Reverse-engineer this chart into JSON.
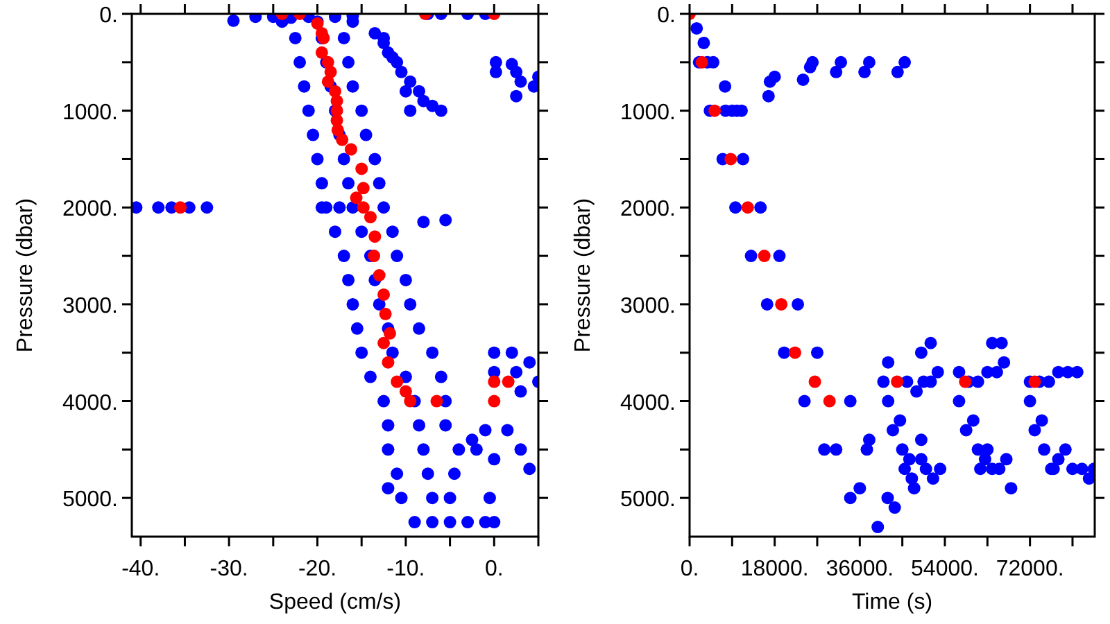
{
  "chart_data": [
    {
      "type": "scatter",
      "xlabel": "Speed (cm/s)",
      "ylabel": "Pressure (dbar)",
      "marker": "circle",
      "xlim": [
        -41,
        5
      ],
      "ylim": [
        5400,
        0
      ],
      "xticks": [
        {
          "value": -40,
          "label": "-40."
        },
        {
          "value": -35,
          "label": null
        },
        {
          "value": -30,
          "label": "-30."
        },
        {
          "value": -25,
          "label": null
        },
        {
          "value": -20,
          "label": "-20."
        },
        {
          "value": -15,
          "label": null
        },
        {
          "value": -10,
          "label": "-10."
        },
        {
          "value": -5,
          "label": null
        },
        {
          "value": 0,
          "label": "0."
        },
        {
          "value": 5,
          "label": null
        }
      ],
      "yticks": [
        {
          "value": 0,
          "label": "0."
        },
        {
          "value": 500,
          "label": null
        },
        {
          "value": 1000,
          "label": "1000."
        },
        {
          "value": 1500,
          "label": null
        },
        {
          "value": 2000,
          "label": "2000."
        },
        {
          "value": 2500,
          "label": null
        },
        {
          "value": 3000,
          "label": "3000."
        },
        {
          "value": 3500,
          "label": null
        },
        {
          "value": 4000,
          "label": "4000."
        },
        {
          "value": 4500,
          "label": null
        },
        {
          "value": 5000,
          "label": "5000."
        }
      ],
      "series": [
        {
          "color": "#0000ff",
          "x": [
            -24,
            -20,
            -16,
            -22.5,
            -19.5,
            -17,
            -22,
            -19,
            -16.5,
            -21.5,
            -18.5,
            -16,
            -21,
            -18,
            -15,
            -20.5,
            -17.5,
            -14.5,
            -20,
            -17,
            -13.5,
            -19.5,
            -16.5,
            -13,
            -19,
            -16,
            -12.5,
            -18,
            -15,
            -11.5,
            -17,
            -14,
            -11,
            -16.5,
            -13.5,
            -10,
            -16,
            -13,
            -9.5,
            -15.5,
            -12,
            -8.5,
            -15,
            -11.5,
            -7,
            -14,
            -10,
            -6,
            -12.5,
            -9,
            -5.5,
            -12,
            -8.5,
            -5.5,
            -12,
            -8,
            -4,
            -11,
            -7.5,
            -4.5,
            -10.5,
            -7,
            -5,
            -9,
            -7,
            -5,
            -12,
            -3,
            -1,
            0,
            2,
            0,
            2.5,
            4,
            5,
            3,
            0,
            -1,
            1.5,
            -2.5,
            3,
            0,
            4,
            -0.5,
            0,
            -2,
            -13.5,
            -12.5,
            -12,
            -11,
            -10.5,
            -9.5,
            -8.5,
            -8,
            -7,
            -9.5,
            -6,
            -12.5,
            -11.5,
            -10,
            -29.5,
            -27,
            -25,
            -23,
            -21,
            -18,
            -16,
            -7.5,
            -6,
            -3,
            -1,
            -40.5,
            -38,
            -36.5,
            -34.5,
            -32.5,
            -19.5,
            -17.5,
            -8,
            -5.5,
            0.2,
            0.2,
            2,
            2.5,
            2.5,
            3,
            4.5,
            5
          ],
          "values": [
            80,
            80,
            80,
            250,
            250,
            250,
            500,
            500,
            500,
            750,
            750,
            750,
            1000,
            1000,
            1000,
            1250,
            1250,
            1250,
            1500,
            1500,
            1500,
            1750,
            1750,
            1750,
            2000,
            2000,
            2000,
            2250,
            2250,
            2250,
            2500,
            2500,
            2500,
            2750,
            2750,
            2750,
            3000,
            3000,
            3000,
            3250,
            3250,
            3250,
            3500,
            3500,
            3500,
            3750,
            3750,
            3750,
            4000,
            4000,
            4000,
            4250,
            4250,
            4250,
            4500,
            4500,
            4500,
            4750,
            4750,
            4750,
            5000,
            5000,
            5000,
            5250,
            5250,
            5250,
            4900,
            5250,
            5250,
            3500,
            3500,
            3700,
            3700,
            3600,
            3800,
            3900,
            null,
            4300,
            4300,
            4400,
            4500,
            4600,
            4700,
            5000,
            5250,
            4500,
            200,
            300,
            400,
            500,
            600,
            700,
            800,
            900,
            950,
            1000,
            1000,
            250,
            450,
            800,
            70,
            30,
            30,
            40,
            30,
            30,
            20,
            0,
            0,
            0,
            0,
            2000,
            2000,
            2000,
            2000,
            2000,
            2000,
            2000,
            2150,
            2130,
            500,
            600,
            520,
            600,
            850,
            700,
            750,
            650
          ]
        },
        {
          "color": "#ff0000",
          "x": [
            -24,
            -22,
            -20,
            -19.5,
            -19.3,
            -19.5,
            -18.8,
            -18.5,
            -18.8,
            -18,
            -17.8,
            -17.8,
            -17.8,
            -17.7,
            -17.2,
            -16.2,
            -15,
            -14.8,
            -15.6,
            -14.8,
            -14,
            -13.5,
            -13.6,
            -13,
            -12.5,
            -12.3,
            -11.8,
            -12.5,
            -12,
            -11,
            -10,
            -9.5,
            -6.5,
            0,
            1.6,
            0,
            -35.5,
            -7.8,
            0
          ],
          "values": [
            0,
            0,
            100,
            200,
            250,
            400,
            500,
            600,
            700,
            800,
            900,
            1000,
            1100,
            1200,
            1300,
            1400,
            1600,
            1800,
            1900,
            2000,
            2100,
            2300,
            2500,
            2700,
            2900,
            3100,
            3300,
            3400,
            3600,
            3800,
            3900,
            4000,
            4000,
            3800,
            3800,
            4000,
            2000,
            0,
            0
          ]
        }
      ]
    },
    {
      "type": "scatter",
      "xlabel": "Time (s)",
      "ylabel": "Pressure (dbar)",
      "marker": "circle",
      "xlim": [
        0,
        85700
      ],
      "ylim": [
        5400,
        0
      ],
      "xticks": [
        {
          "value": 0,
          "label": "0."
        },
        {
          "value": 9000,
          "label": null
        },
        {
          "value": 18000,
          "label": "18000."
        },
        {
          "value": 27000,
          "label": null
        },
        {
          "value": 36000,
          "label": "36000."
        },
        {
          "value": 45000,
          "label": null
        },
        {
          "value": 54000,
          "label": "54000."
        },
        {
          "value": 63000,
          "label": null
        },
        {
          "value": 72000,
          "label": "72000."
        },
        {
          "value": 81000,
          "label": null
        }
      ],
      "yticks": [
        {
          "value": 0,
          "label": "0."
        },
        {
          "value": 500,
          "label": null
        },
        {
          "value": 1000,
          "label": "1000."
        },
        {
          "value": 1500,
          "label": null
        },
        {
          "value": 2000,
          "label": "2000."
        },
        {
          "value": 2500,
          "label": null
        },
        {
          "value": 3000,
          "label": "3000."
        },
        {
          "value": 3500,
          "label": null
        },
        {
          "value": 4000,
          "label": "4000."
        },
        {
          "value": 4500,
          "label": null
        },
        {
          "value": 5000,
          "label": "5000."
        }
      ],
      "series": [
        {
          "color": "#0000ff",
          "x": [
            1500,
            2000,
            3800,
            4300,
            7600,
            7000,
            11300,
            9700,
            15000,
            13000,
            19000,
            16400,
            22900,
            20000,
            27000,
            24300,
            34000,
            28500,
            37500,
            34000,
            41900,
            39800,
            31000,
            36000,
            38000,
            43400,
            3000,
            5000,
            7500,
            10000,
            9000,
            11000,
            16700,
            17000,
            18000,
            24000,
            25500,
            26000,
            31000,
            32000,
            37000,
            38000,
            44000,
            45500,
            41000,
            42000,
            44000,
            46000,
            48000,
            49500,
            51000,
            52500,
            49000,
            51000,
            42000,
            43000,
            44500,
            45000,
            46500,
            47000,
            49000,
            50000,
            51500,
            53000,
            49000,
            45500,
            47500,
            57000,
            59000,
            61000,
            63000,
            65000,
            66500,
            64000,
            66000,
            57000,
            58500,
            60000,
            61000,
            62500,
            64000,
            65500,
            67000,
            63000,
            61500,
            68000,
            72000,
            74000,
            76000,
            78000,
            80000,
            82000,
            72000,
            73000,
            74500,
            75000,
            76500,
            78000,
            79500,
            81000,
            83000,
            84500,
            77000,
            85500
          ],
          "values": [
            150,
            500,
            500,
            1000,
            1000,
            1500,
            1500,
            2000,
            2000,
            2500,
            2500,
            3000,
            3000,
            3500,
            3500,
            4000,
            4000,
            4500,
            4500,
            5000,
            5000,
            5300,
            4500,
            4900,
            4400,
            5100,
            300,
            500,
            750,
            1000,
            1000,
            1000,
            850,
            700,
            650,
            680,
            550,
            500,
            600,
            500,
            600,
            500,
            600,
            500,
            3800,
            3600,
            null,
            3800,
            3900,
            3800,
            3800,
            3700,
            3500,
            3400,
            4000,
            4300,
            4200,
            4500,
            4600,
            4800,
            4600,
            4700,
            4800,
            4700,
            4400,
            4700,
            4900,
            3700,
            3800,
            3800,
            3700,
            3700,
            3600,
            3400,
            3400,
            4000,
            4300,
            4200,
            4500,
            4600,
            4700,
            4700,
            4600,
            4500,
            4700,
            4900,
            3800,
            3800,
            3800,
            3700,
            3700,
            3700,
            4000,
            4300,
            4200,
            4500,
            4700,
            4600,
            4500,
            4700,
            4700,
            4800,
            4700,
            4700
          ]
        },
        {
          "color": "#ff0000",
          "x": [
            0,
            2600,
            5300,
            8700,
            12300,
            15800,
            19400,
            22300,
            26500,
            29600,
            43900,
            58300,
            73000
          ],
          "values": [
            0,
            500,
            1000,
            1500,
            2000,
            2500,
            3000,
            3500,
            3800,
            4000,
            3800,
            3800,
            3800
          ]
        }
      ]
    }
  ]
}
